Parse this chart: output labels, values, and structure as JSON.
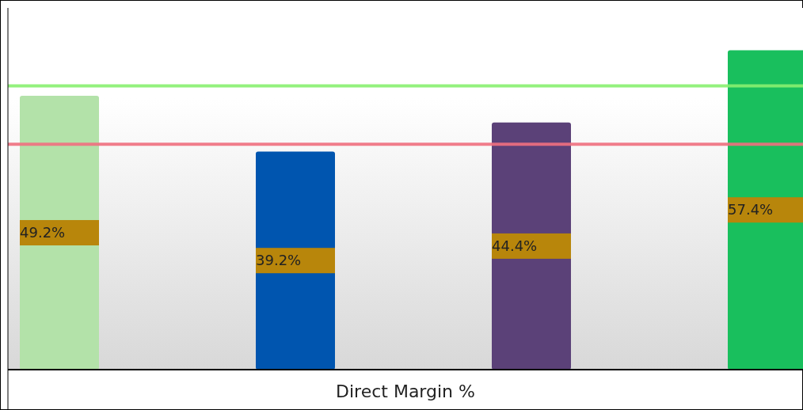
{
  "chart_data": {
    "type": "bar",
    "xlabel": "Direct Margin %",
    "categories": [
      null,
      null,
      null,
      null
    ],
    "values": [
      49.2,
      39.2,
      44.4,
      57.4
    ],
    "colors": [
      "#b3e2a9",
      "#0055af",
      "#5b4178",
      "#19bf5d"
    ],
    "value_labels": [
      "49.2%",
      "39.2%",
      "44.4%",
      "57.4%"
    ],
    "ylim": [
      0,
      65
    ],
    "ref_lines": [
      {
        "axis": "y",
        "value": 51,
        "color": "#88f070"
      },
      {
        "axis": "y",
        "value": 40.5,
        "color": "#f07080"
      }
    ]
  }
}
